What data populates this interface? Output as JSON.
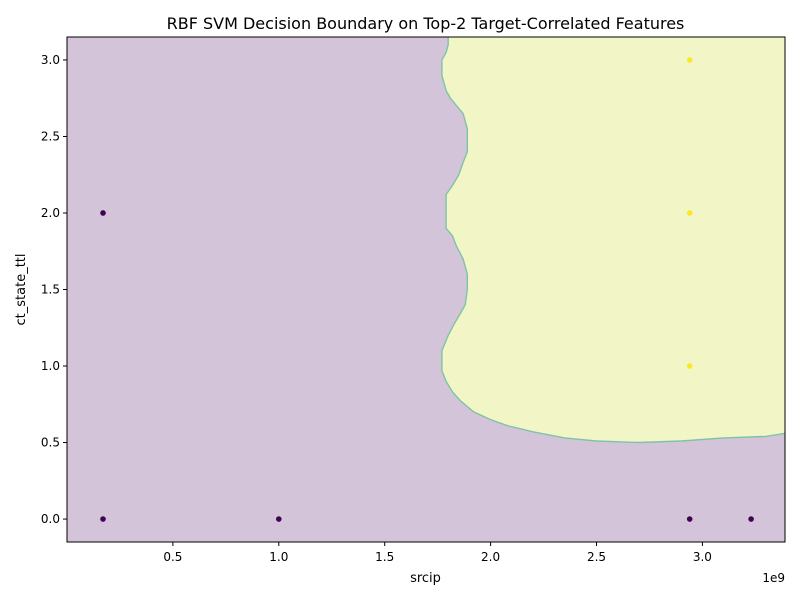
{
  "chart_data": {
    "type": "scatter",
    "title": "RBF SVM Decision Boundary on Top-2 Target-Correlated Features",
    "xlabel": "srcip",
    "ylabel": "ct_state_ttl",
    "x_offset_label": "1e9",
    "x_scale": 1000000000,
    "xlim": [
      0.0,
      3.39
    ],
    "ylim": [
      -0.15,
      3.15
    ],
    "x_ticks": [
      0.5,
      1.0,
      1.5,
      2.0,
      2.5,
      3.0
    ],
    "x_tick_labels": [
      "0.5",
      "1.0",
      "1.5",
      "2.0",
      "2.5",
      "3.0"
    ],
    "y_ticks": [
      0.0,
      0.5,
      1.0,
      1.5,
      2.0,
      2.5,
      3.0
    ],
    "y_tick_labels": [
      "0.0",
      "0.5",
      "1.0",
      "1.5",
      "2.0",
      "2.5",
      "3.0"
    ],
    "grid": false,
    "colors": {
      "class_0_region": "#d3c4da",
      "class_1_region": "#f2f6c6",
      "boundary": "#7fc3a7",
      "class_0_point": "#440154",
      "class_1_point": "#fde725"
    },
    "decision_boundary": [
      [
        1.8,
        3.15
      ],
      [
        1.8,
        3.1
      ],
      [
        1.79,
        3.05
      ],
      [
        1.77,
        3.0
      ],
      [
        1.77,
        2.9
      ],
      [
        1.79,
        2.8
      ],
      [
        1.81,
        2.75
      ],
      [
        1.84,
        2.7
      ],
      [
        1.87,
        2.65
      ],
      [
        1.89,
        2.55
      ],
      [
        1.89,
        2.4
      ],
      [
        1.87,
        2.33
      ],
      [
        1.85,
        2.25
      ],
      [
        1.82,
        2.18
      ],
      [
        1.79,
        2.12
      ],
      [
        1.79,
        2.0
      ],
      [
        1.79,
        1.9
      ],
      [
        1.82,
        1.85
      ],
      [
        1.84,
        1.78
      ],
      [
        1.87,
        1.7
      ],
      [
        1.89,
        1.6
      ],
      [
        1.89,
        1.5
      ],
      [
        1.88,
        1.4
      ],
      [
        1.86,
        1.35
      ],
      [
        1.83,
        1.28
      ],
      [
        1.8,
        1.2
      ],
      [
        1.77,
        1.1
      ],
      [
        1.77,
        0.97
      ],
      [
        1.79,
        0.9
      ],
      [
        1.82,
        0.83
      ],
      [
        1.86,
        0.77
      ],
      [
        1.92,
        0.7
      ],
      [
        2.0,
        0.65
      ],
      [
        2.08,
        0.61
      ],
      [
        2.2,
        0.57
      ],
      [
        2.35,
        0.53
      ],
      [
        2.5,
        0.51
      ],
      [
        2.7,
        0.5
      ],
      [
        2.9,
        0.51
      ],
      [
        3.1,
        0.53
      ],
      [
        3.3,
        0.54
      ],
      [
        3.39,
        0.56
      ]
    ],
    "series": [
      {
        "class": 0,
        "points": [
          {
            "x": 0.17,
            "y": 2.0
          },
          {
            "x": 0.17,
            "y": 0.0
          },
          {
            "x": 1.0,
            "y": 0.0
          },
          {
            "x": 2.94,
            "y": 0.0
          },
          {
            "x": 3.23,
            "y": 0.0
          }
        ]
      },
      {
        "class": 1,
        "points": [
          {
            "x": 2.94,
            "y": 3.0
          },
          {
            "x": 2.94,
            "y": 2.0
          },
          {
            "x": 2.94,
            "y": 1.0
          }
        ]
      }
    ]
  }
}
